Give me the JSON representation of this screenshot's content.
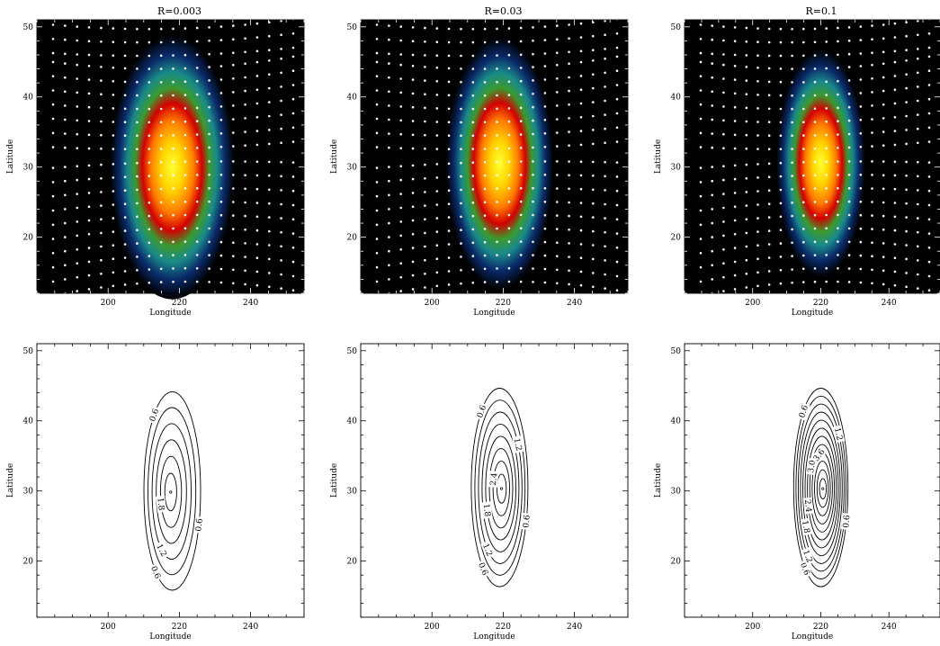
{
  "chart_data": [
    {
      "type": "heatmap",
      "title": "R=0.003",
      "xlabel": "Longitude",
      "ylabel": "Latitude",
      "xlim": [
        180,
        255
      ],
      "ylim": [
        12,
        51
      ],
      "xticks": [
        200,
        220,
        240
      ],
      "yticks": [
        20,
        30,
        40,
        50
      ],
      "center": [
        218,
        30
      ],
      "sigma_lon": 6,
      "sigma_lat": 6.5,
      "overlay": "white velocity dots",
      "colormap": "black-blue-green-red-yellow"
    },
    {
      "type": "heatmap",
      "title": "R=0.03",
      "xlabel": "Longitude",
      "ylabel": "Latitude",
      "xlim": [
        180,
        255
      ],
      "ylim": [
        12,
        51
      ],
      "xticks": [
        200,
        220,
        240
      ],
      "yticks": [
        20,
        30,
        40,
        50
      ],
      "center": [
        219,
        30.5
      ],
      "sigma_lon": 5.2,
      "sigma_lat": 6.2,
      "overlay": "white velocity dots",
      "colormap": "black-blue-green-red-yellow"
    },
    {
      "type": "heatmap",
      "title": "R=0.1",
      "xlabel": "Longitude",
      "ylabel": "Latitude",
      "xlim": [
        180,
        255
      ],
      "ylim": [
        12,
        51
      ],
      "xticks": [
        200,
        220,
        240
      ],
      "yticks": [
        20,
        30,
        40,
        50
      ],
      "center": [
        220,
        30.5
      ],
      "sigma_lon": 4.5,
      "sigma_lat": 5.6,
      "overlay": "white velocity dots",
      "colormap": "black-blue-green-red-yellow"
    },
    {
      "type": "contour",
      "title": "",
      "xlabel": "Longitude",
      "ylabel": "Latitude",
      "xlim": [
        180,
        255
      ],
      "ylim": [
        12,
        51
      ],
      "xticks": [
        200,
        220,
        240
      ],
      "yticks": [
        20,
        30,
        40,
        50
      ],
      "center": [
        218,
        30
      ],
      "outer_half_width": [
        16.5,
        14
      ],
      "levels": [
        0.6,
        0.9,
        1.2,
        1.5,
        1.8,
        2.0
      ],
      "level_labels": [
        {
          "text": "0.6"
        },
        {
          "text": "0.6"
        },
        {
          "text": "0.6"
        },
        {
          "text": "1.2"
        },
        {
          "text": "1.8"
        }
      ]
    },
    {
      "type": "contour",
      "title": "",
      "xlabel": "Longitude",
      "ylabel": "Latitude",
      "xlim": [
        180,
        255
      ],
      "ylim": [
        12,
        51
      ],
      "xticks": [
        200,
        220,
        240
      ],
      "yticks": [
        20,
        30,
        40,
        50
      ],
      "center": [
        219,
        30.5
      ],
      "outer_half_width": [
        16.5,
        14
      ],
      "levels": [
        0.6,
        0.9,
        1.2,
        1.5,
        1.8,
        2.1,
        2.4,
        2.7
      ],
      "level_labels": [
        {
          "text": "0.6"
        },
        {
          "text": "0.6"
        },
        {
          "text": "0.6"
        },
        {
          "text": "1.2"
        },
        {
          "text": "1.2"
        },
        {
          "text": "1.8"
        },
        {
          "text": "2.4"
        }
      ]
    },
    {
      "type": "contour",
      "title": "",
      "xlabel": "Longitude",
      "ylabel": "Latitude",
      "xlim": [
        180,
        255
      ],
      "ylim": [
        12,
        51
      ],
      "xticks": [
        200,
        220,
        240
      ],
      "yticks": [
        20,
        30,
        40,
        50
      ],
      "center": [
        220,
        30.5
      ],
      "outer_half_width": [
        16.5,
        14
      ],
      "levels": [
        0.6,
        0.9,
        1.2,
        1.5,
        1.8,
        2.1,
        2.4,
        2.7,
        3.0,
        3.3,
        3.6,
        3.9
      ],
      "level_labels": [
        {
          "text": "0.6"
        },
        {
          "text": "0.6"
        },
        {
          "text": "0.6"
        },
        {
          "text": "1.2"
        },
        {
          "text": "1.2"
        },
        {
          "text": "1.8"
        },
        {
          "text": "2.4"
        },
        {
          "text": "3.0"
        },
        {
          "text": "3.6"
        }
      ]
    }
  ]
}
